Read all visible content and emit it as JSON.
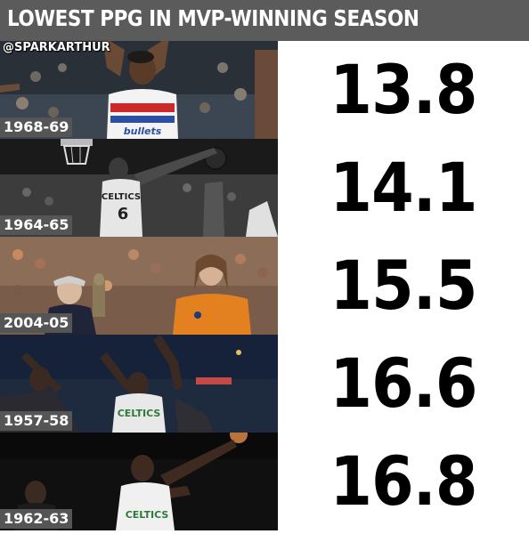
{
  "header": {
    "title": "LOWEST PPG IN MVP-WINNING SEASON",
    "background": "#5b5b5b"
  },
  "watermark": "@SPARKARTHUR",
  "rows": [
    {
      "season": "1968-69",
      "ppg": "13.8",
      "jersey_text": "bullets"
    },
    {
      "season": "1964-65",
      "ppg": "14.1",
      "jersey_text": "CELTICS",
      "jersey_number": "6"
    },
    {
      "season": "2004-05",
      "ppg": "15.5"
    },
    {
      "season": "1957-58",
      "ppg": "16.6",
      "jersey_text": "CELTICS"
    },
    {
      "season": "1962-63",
      "ppg": "16.8",
      "jersey_text": "CELTICS"
    }
  ]
}
